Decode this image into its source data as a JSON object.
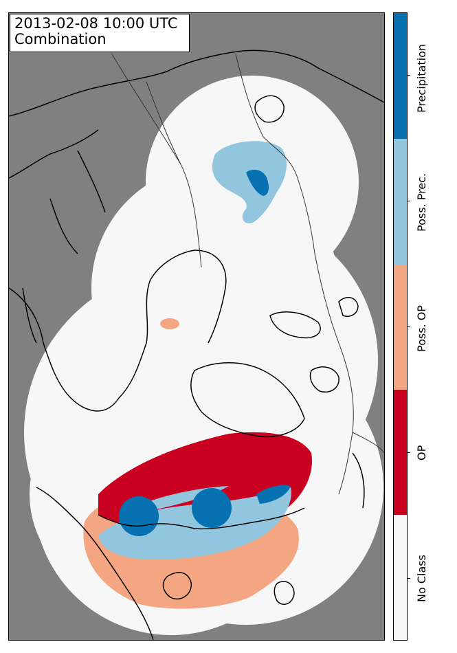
{
  "title": {
    "line1": "2013-02-08 10:00 UTC",
    "line2": "Combination"
  },
  "colorbar": {
    "classes": [
      {
        "label": "No Class",
        "color": "#f7f7f7"
      },
      {
        "label": "OP",
        "color": "#ca0020"
      },
      {
        "label": "Poss. OP",
        "color": "#f4a582"
      },
      {
        "label": "Poss. Prec.",
        "color": "#92c5de"
      },
      {
        "label": "Precipitation",
        "color": "#0571b0"
      }
    ]
  },
  "colors": {
    "background": "#808080",
    "coverage": "#f7f7f7",
    "coastline": "#000000",
    "border": "#333333"
  }
}
